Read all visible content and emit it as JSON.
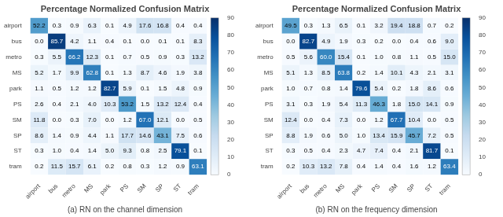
{
  "chart_data": [
    {
      "type": "heatmap",
      "title": "Percentage Normalized Confusion Matrix",
      "annotations": [
        "(a) RN on the channel dimension"
      ],
      "categories": [
        "airport",
        "bus",
        "metro",
        "MS",
        "park",
        "PS",
        "SM",
        "SP",
        "ST",
        "tram"
      ],
      "y_categories": [
        "airport",
        "bus",
        "metro",
        "MS",
        "park",
        "PS",
        "SM",
        "SP",
        "ST",
        "tram"
      ],
      "values": [
        [
          52.2,
          0.3,
          0.9,
          6.3,
          0.1,
          4.9,
          17.6,
          16.8,
          0.4,
          0.4
        ],
        [
          0.0,
          85.7,
          4.2,
          1.1,
          0.4,
          0.1,
          0.0,
          0.1,
          0.1,
          8.3
        ],
        [
          0.3,
          5.5,
          66.2,
          12.3,
          0.1,
          0.7,
          0.5,
          0.9,
          0.3,
          13.2
        ],
        [
          5.2,
          1.7,
          9.9,
          62.8,
          0.1,
          1.3,
          8.7,
          4.6,
          1.9,
          3.8
        ],
        [
          1.1,
          0.5,
          1.2,
          1.2,
          82.7,
          5.9,
          0.1,
          1.5,
          4.8,
          0.9
        ],
        [
          2.6,
          0.4,
          2.1,
          4.0,
          10.3,
          53.2,
          1.5,
          13.2,
          12.4,
          0.4
        ],
        [
          11.8,
          0.0,
          0.3,
          7.0,
          0.0,
          1.2,
          67.0,
          12.1,
          0.0,
          0.5
        ],
        [
          8.6,
          1.4,
          0.9,
          4.4,
          1.1,
          17.7,
          14.6,
          43.1,
          7.5,
          0.6
        ],
        [
          0.3,
          1.0,
          0.4,
          1.4,
          5.0,
          9.3,
          0.8,
          2.5,
          79.1,
          0.1
        ],
        [
          0.2,
          11.5,
          15.7,
          6.1,
          0.2,
          0.8,
          0.3,
          1.2,
          0.9,
          63.1
        ]
      ],
      "value_labels": [
        [
          "52.2",
          "0.3",
          "0.9",
          "6.3",
          "0.1",
          "4.9",
          "17.6",
          "16.8",
          "0.4",
          "0.4"
        ],
        [
          "0.0",
          "85.7",
          "4.2",
          "1.1",
          "0.4",
          "0.1",
          "0.0",
          "0.1",
          "0.1",
          "8.3"
        ],
        [
          "0.3",
          "5.5",
          "66.2",
          "12.3",
          "0.1",
          "0.7",
          "0.5",
          "0.9",
          "0.3",
          "13.2"
        ],
        [
          "5.2",
          "1.7",
          "9.9",
          "62.8",
          "0.1",
          "1.3",
          "8.7",
          "4.6",
          "1.9",
          "3.8"
        ],
        [
          "1.1",
          "0.5",
          "1.2",
          "1.2",
          "82.7",
          "5.9",
          "0.1",
          "1.5",
          "4.8",
          "0.9"
        ],
        [
          "2.6",
          "0.4",
          "2.1",
          "4.0",
          "10.3",
          "53.2",
          "1.5",
          "13.2",
          "12.4",
          "0.4"
        ],
        [
          "11.8",
          "0.0",
          "0.3",
          "7.0",
          "0.0",
          "1.2",
          "67.0",
          "12.1",
          "0.0",
          "0.5"
        ],
        [
          "8.6",
          "1.4",
          "0.9",
          "4.4",
          "1.1",
          "17.7",
          "14.6",
          "43.1",
          "7.5",
          "0.6"
        ],
        [
          "0.3",
          "1.0",
          "0.4",
          "1.4",
          "5.0",
          "9.3",
          "0.8",
          "2.5",
          "79.1",
          "0.1"
        ],
        [
          "0.2",
          "11.5",
          "15.7",
          "6.1",
          "0.2",
          "0.8",
          "0.3",
          "1.2",
          "0.9",
          "63.1"
        ]
      ],
      "data_labels": true,
      "colormap": [
        "#f7fbff",
        "#deebf7",
        "#c6dbef",
        "#9ecae1",
        "#6baed6",
        "#4292c6",
        "#2171b5",
        "#08519c",
        "#08306b"
      ],
      "colorbar_range": [
        0,
        90
      ],
      "colorbar_ticks": [
        0,
        10,
        20,
        30,
        40,
        50,
        60,
        70,
        80,
        90
      ],
      "grid": false
    },
    {
      "type": "heatmap",
      "title": "Percentage Normalized Confusion Matrix",
      "annotations": [
        "(b) RN on the frequency dimension"
      ],
      "categories": [
        "airport",
        "bus",
        "metro",
        "MS",
        "park",
        "PS",
        "SM",
        "SP",
        "ST",
        "tram"
      ],
      "y_categories": [
        "airport",
        "bus",
        "metro",
        "MS",
        "park",
        "PS",
        "SM",
        "SP",
        "ST",
        "tram"
      ],
      "values": [
        [
          49.5,
          0.3,
          1.3,
          6.5,
          0.1,
          3.2,
          19.4,
          18.8,
          0.7,
          0.2
        ],
        [
          0.0,
          82.7,
          4.9,
          1.9,
          0.3,
          0.2,
          0.0,
          0.4,
          0.6,
          9.0
        ],
        [
          0.5,
          5.6,
          60.0,
          15.4,
          0.1,
          1.0,
          0.8,
          1.1,
          0.5,
          15.0
        ],
        [
          5.1,
          1.3,
          8.5,
          63.8,
          0.2,
          1.4,
          10.1,
          4.3,
          2.1,
          3.1
        ],
        [
          1.0,
          0.7,
          0.8,
          1.4,
          79.6,
          5.4,
          0.2,
          1.8,
          8.6,
          0.6
        ],
        [
          3.1,
          0.3,
          1.9,
          5.4,
          11.3,
          46.3,
          1.8,
          15.0,
          14.1,
          0.9
        ],
        [
          12.4,
          0.0,
          0.4,
          7.3,
          0.0,
          1.2,
          67.7,
          10.4,
          0.0,
          0.5
        ],
        [
          8.8,
          1.9,
          0.6,
          5.0,
          1.0,
          13.4,
          15.9,
          45.7,
          7.2,
          0.5
        ],
        [
          0.3,
          0.5,
          0.4,
          2.3,
          4.7,
          7.4,
          0.4,
          2.1,
          81.7,
          0.1
        ],
        [
          0.2,
          10.3,
          13.2,
          7.8,
          0.4,
          1.4,
          0.4,
          1.6,
          1.2,
          63.4
        ]
      ],
      "value_labels": [
        [
          "49.5",
          "0.3",
          "1.3",
          "6.5",
          "0.1",
          "3.2",
          "19.4",
          "18.8",
          "0.7",
          "0.2"
        ],
        [
          "0.0",
          "82.7",
          "4.9",
          "1.9",
          "0.3",
          "0.2",
          "0.0",
          "0.4",
          "0.6",
          "9.0"
        ],
        [
          "0.5",
          "5.6",
          "60.0",
          "15.4",
          "0.1",
          "1.0",
          "0.8",
          "1.1",
          "0.5",
          "15.0"
        ],
        [
          "5.1",
          "1.3",
          "8.5",
          "63.8",
          "0.2",
          "1.4",
          "10.1",
          "4.3",
          "2.1",
          "3.1"
        ],
        [
          "1.0",
          "0.7",
          "0.8",
          "1.4",
          "79.6",
          "5.4",
          "0.2",
          "1.8",
          "8.6",
          "0.6"
        ],
        [
          "3.1",
          "0.3",
          "1.9",
          "5.4",
          "11.3",
          "46.3",
          "1.8",
          "15.0",
          "14.1",
          "0.9"
        ],
        [
          "12.4",
          "0.0",
          "0.4",
          "7.3",
          "0.0",
          "1.2",
          "67.7",
          "10.4",
          "0.0",
          "0.5"
        ],
        [
          "8.8",
          "1.9",
          "0.6",
          "5.0",
          "1.0",
          "13.4",
          "15.9",
          "45.7",
          "7.2",
          "0.5"
        ],
        [
          "0.3",
          "0.5",
          "0.4",
          "2.3",
          "4.7",
          "7.4",
          "0.4",
          "2.1",
          "81.7",
          "0.1"
        ],
        [
          "0.2",
          "10.3",
          "13.2",
          "7.8",
          "0.4",
          "1.4",
          "0.4",
          "1.6",
          "1.2",
          "63.4"
        ]
      ],
      "data_labels": true,
      "colormap": [
        "#f7fbff",
        "#deebf7",
        "#c6dbef",
        "#9ecae1",
        "#6baed6",
        "#4292c6",
        "#2171b5",
        "#08519c",
        "#08306b"
      ],
      "colorbar_range": [
        0,
        90
      ],
      "colorbar_ticks": [
        0,
        10,
        20,
        30,
        40,
        50,
        60,
        70,
        80,
        90
      ],
      "grid": false
    }
  ]
}
